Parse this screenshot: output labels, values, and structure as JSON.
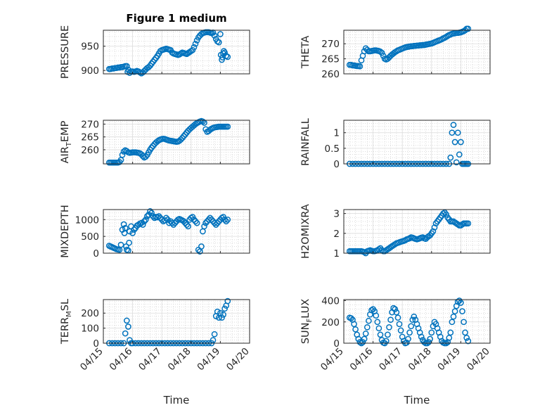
{
  "title": "Figure 1 medium",
  "chart_data": [
    {
      "type": "scatter",
      "ylabel": "PRESSURE",
      "ylabel_parts": [
        "PRESSURE"
      ],
      "yticks": [
        900,
        950
      ],
      "ylim": [
        893,
        983
      ],
      "xlabel": "",
      "xticklabels": [],
      "marker_color": "#0072BD",
      "x": [
        15.2,
        15.25,
        15.3,
        15.35,
        15.4,
        15.45,
        15.5,
        15.55,
        15.6,
        15.65,
        15.7,
        15.75,
        15.8,
        15.83,
        15.86,
        15.9,
        15.95,
        16.0,
        16.05,
        16.1,
        16.15,
        16.2,
        16.25,
        16.3,
        16.35,
        16.4,
        16.45,
        16.5,
        16.55,
        16.6,
        16.65,
        16.7,
        16.75,
        16.8,
        16.85,
        16.9,
        16.95,
        17.0,
        17.05,
        17.1,
        17.15,
        17.2,
        17.25,
        17.3,
        17.35,
        17.4,
        17.45,
        17.5,
        17.55,
        17.6,
        17.65,
        17.7,
        17.75,
        17.8,
        17.85,
        17.9,
        17.95,
        18.0,
        18.05,
        18.1,
        18.15,
        18.2,
        18.25,
        18.3,
        18.35,
        18.4,
        18.45,
        18.5,
        18.55,
        18.6,
        18.65,
        18.7,
        18.75,
        18.8,
        18.85,
        18.9,
        18.95,
        19.0,
        19.02,
        19.05,
        19.08,
        19.1,
        19.12,
        19.15,
        19.2,
        19.25
      ],
      "y": [
        903,
        903,
        904,
        904,
        905,
        905,
        906,
        906,
        907,
        907,
        908,
        909,
        909,
        897,
        901,
        895,
        898,
        898,
        897,
        898,
        899,
        898,
        896,
        894,
        896,
        899,
        902,
        905,
        907,
        910,
        914,
        918,
        922,
        926,
        930,
        935,
        940,
        942,
        943,
        944,
        945,
        944,
        943,
        942,
        937,
        935,
        934,
        933,
        932,
        933,
        935,
        937,
        936,
        935,
        934,
        936,
        938,
        940,
        942,
        948,
        955,
        962,
        968,
        972,
        975,
        977,
        978,
        979,
        979,
        979,
        978,
        977,
        978,
        972,
        965,
        960,
        958,
        975,
        932,
        922,
        927,
        935,
        940,
        937,
        930,
        928
      ]
    },
    {
      "type": "scatter",
      "ylabel": "THETA",
      "ylabel_parts": [
        "THETA"
      ],
      "yticks": [
        260,
        265,
        270
      ],
      "ylim": [
        260,
        274.5
      ],
      "xlabel": "",
      "xticklabels": [],
      "marker_color": "#0072BD",
      "x": [
        15.2,
        15.25,
        15.3,
        15.35,
        15.4,
        15.45,
        15.5,
        15.55,
        15.6,
        15.65,
        15.7,
        15.75,
        15.8,
        15.85,
        15.9,
        15.95,
        16.0,
        16.05,
        16.1,
        16.15,
        16.2,
        16.25,
        16.3,
        16.35,
        16.4,
        16.45,
        16.5,
        16.55,
        16.6,
        16.65,
        16.7,
        16.75,
        16.8,
        16.85,
        16.9,
        16.95,
        17.0,
        17.05,
        17.1,
        17.15,
        17.2,
        17.25,
        17.3,
        17.35,
        17.4,
        17.45,
        17.5,
        17.55,
        17.6,
        17.65,
        17.7,
        17.75,
        17.8,
        17.85,
        17.9,
        17.95,
        18.0,
        18.05,
        18.1,
        18.15,
        18.2,
        18.25,
        18.3,
        18.35,
        18.4,
        18.45,
        18.5,
        18.55,
        18.6,
        18.65,
        18.7,
        18.75,
        18.8,
        18.85,
        18.9,
        18.95,
        19.0,
        19.05,
        19.1,
        19.15,
        19.2,
        19.25
      ],
      "y": [
        263,
        263,
        262.8,
        262.8,
        262.7,
        262.6,
        262.6,
        262.5,
        264.5,
        266,
        267.5,
        268.5,
        268,
        267.5,
        267.5,
        267.6,
        267.7,
        267.8,
        267.8,
        267.7,
        267.6,
        267.4,
        267,
        266,
        265,
        264.8,
        265,
        265.5,
        266,
        266.4,
        266.8,
        267.2,
        267.5,
        267.8,
        268,
        268.2,
        268.4,
        268.6,
        268.8,
        268.9,
        269,
        269.1,
        269.2,
        269.2,
        269.3,
        269.3,
        269.4,
        269.4,
        269.5,
        269.5,
        269.6,
        269.6,
        269.7,
        269.8,
        269.9,
        270,
        270.1,
        270.3,
        270.5,
        270.7,
        270.9,
        271.1,
        271.3,
        271.5,
        271.8,
        272,
        272.3,
        272.6,
        272.9,
        273.1,
        273.3,
        273.4,
        273.5,
        273.6,
        273.6,
        273.7,
        273.8,
        274,
        274.2,
        274.5,
        275,
        275
      ]
    },
    {
      "type": "scatter",
      "ylabel": "AIR_TEMP",
      "ylabel_parts": [
        "AIR",
        "T",
        "EMP"
      ],
      "yticks": [
        260,
        265,
        270
      ],
      "ylim": [
        254.5,
        271.5
      ],
      "xlabel": "",
      "xticklabels": [],
      "marker_color": "#0072BD",
      "x": [
        15.2,
        15.25,
        15.3,
        15.35,
        15.4,
        15.45,
        15.5,
        15.55,
        15.6,
        15.65,
        15.7,
        15.75,
        15.8,
        15.85,
        15.9,
        15.95,
        16.0,
        16.05,
        16.1,
        16.15,
        16.2,
        16.25,
        16.3,
        16.35,
        16.4,
        16.45,
        16.5,
        16.55,
        16.6,
        16.65,
        16.7,
        16.75,
        16.8,
        16.85,
        16.9,
        16.95,
        17.0,
        17.05,
        17.1,
        17.15,
        17.2,
        17.25,
        17.3,
        17.35,
        17.4,
        17.45,
        17.5,
        17.55,
        17.6,
        17.65,
        17.7,
        17.75,
        17.8,
        17.85,
        17.9,
        17.95,
        18.0,
        18.05,
        18.1,
        18.15,
        18.2,
        18.25,
        18.3,
        18.35,
        18.4,
        18.45,
        18.5,
        18.55,
        18.6,
        18.65,
        18.7,
        18.75,
        18.8,
        18.85,
        18.9,
        18.95,
        19.0,
        19.05,
        19.1,
        19.15,
        19.2,
        19.25
      ],
      "y": [
        255,
        255,
        255,
        255,
        255,
        255,
        255,
        255.2,
        256,
        258,
        259.3,
        259.8,
        259.5,
        259,
        258.8,
        258.9,
        259,
        259,
        259,
        258.9,
        258.8,
        258.6,
        258.2,
        257.5,
        257,
        257.3,
        258,
        259,
        260,
        260.8,
        261.5,
        262.2,
        262.8,
        263.3,
        263.7,
        264,
        264.2,
        264.3,
        264.2,
        264,
        263.8,
        263.6,
        263.5,
        263.4,
        263.3,
        263.2,
        263.1,
        263.2,
        263.5,
        264,
        264.6,
        265.3,
        266,
        266.7,
        267.4,
        268,
        268.5,
        269,
        269.5,
        270,
        270.4,
        270.7,
        271,
        271.2,
        271,
        270.5,
        268,
        267,
        267.3,
        267.8,
        268.2,
        268.5,
        268.7,
        268.8,
        268.9,
        269,
        269,
        269,
        269,
        269,
        269,
        269
      ]
    },
    {
      "type": "scatter",
      "ylabel": "RAINFALL",
      "ylabel_parts": [
        "RAINFALL"
      ],
      "yticks": [
        0,
        0.5,
        1
      ],
      "ylim": [
        0,
        1.4
      ],
      "xlabel": "",
      "xticklabels": [],
      "marker_color": "#0072BD",
      "x": [
        15.2,
        15.3,
        15.4,
        15.5,
        15.6,
        15.7,
        15.8,
        15.9,
        16.0,
        16.1,
        16.2,
        16.3,
        16.4,
        16.5,
        16.6,
        16.7,
        16.8,
        16.9,
        17.0,
        17.1,
        17.2,
        17.3,
        17.4,
        17.5,
        17.6,
        17.7,
        17.8,
        17.9,
        18.0,
        18.1,
        18.2,
        18.3,
        18.4,
        18.5,
        18.6,
        18.65,
        18.7,
        18.75,
        18.8,
        18.85,
        18.9,
        18.95,
        19.0,
        19.05,
        19.1,
        19.15,
        19.2,
        19.25
      ],
      "y": [
        0,
        0,
        0,
        0,
        0,
        0,
        0,
        0,
        0,
        0,
        0,
        0,
        0,
        0,
        0,
        0,
        0,
        0,
        0,
        0,
        0,
        0,
        0,
        0,
        0,
        0,
        0,
        0,
        0,
        0,
        0,
        0,
        0,
        0,
        0,
        0.2,
        1.0,
        1.25,
        0.7,
        0.05,
        1.0,
        0.3,
        0.7,
        0,
        0,
        0,
        0,
        0
      ]
    },
    {
      "type": "scatter",
      "ylabel": "MIXDEPTH",
      "ylabel_parts": [
        "MIXDEPTH"
      ],
      "yticks": [
        0,
        500,
        1000
      ],
      "ylim": [
        0,
        1300
      ],
      "xlabel": "",
      "xticklabels": [],
      "marker_color": "#0072BD",
      "x": [
        15.2,
        15.25,
        15.3,
        15.35,
        15.4,
        15.45,
        15.5,
        15.55,
        15.6,
        15.65,
        15.7,
        15.72,
        15.75,
        15.78,
        15.8,
        15.85,
        15.88,
        15.9,
        15.95,
        16.0,
        16.05,
        16.1,
        16.15,
        16.2,
        16.25,
        16.3,
        16.35,
        16.4,
        16.45,
        16.5,
        16.55,
        16.6,
        16.65,
        16.7,
        16.75,
        16.8,
        16.85,
        16.9,
        16.95,
        17.0,
        17.05,
        17.1,
        17.15,
        17.2,
        17.25,
        17.3,
        17.35,
        17.4,
        17.45,
        17.5,
        17.55,
        17.6,
        17.65,
        17.7,
        17.75,
        17.8,
        17.85,
        17.9,
        17.95,
        18.0,
        18.05,
        18.1,
        18.15,
        18.2,
        18.25,
        18.3,
        18.35,
        18.4,
        18.45,
        18.5,
        18.55,
        18.6,
        18.65,
        18.7,
        18.75,
        18.8,
        18.85,
        18.9,
        18.95,
        19.0,
        19.05,
        19.1,
        19.15,
        19.2,
        19.25
      ],
      "y": [
        220,
        200,
        180,
        160,
        140,
        120,
        110,
        100,
        250,
        700,
        860,
        600,
        750,
        200,
        100,
        80,
        310,
        650,
        800,
        600,
        700,
        750,
        820,
        850,
        880,
        900,
        850,
        950,
        1000,
        1100,
        1150,
        1250,
        1200,
        1100,
        1050,
        1080,
        1070,
        1100,
        1050,
        1000,
        950,
        980,
        1050,
        1000,
        900,
        950,
        900,
        850,
        900,
        950,
        1000,
        1020,
        1000,
        980,
        950,
        900,
        850,
        800,
        1000,
        1050,
        1080,
        1000,
        950,
        900,
        100,
        50,
        200,
        650,
        800,
        900,
        950,
        1000,
        1050,
        1000,
        950,
        900,
        850,
        900,
        950,
        1000,
        1050,
        1080,
        1000,
        950,
        1000
      ]
    },
    {
      "type": "scatter",
      "ylabel": "H2OMIXRA",
      "ylabel_parts": [
        "H2OMIXRA"
      ],
      "yticks": [
        1,
        2,
        3
      ],
      "ylim": [
        1,
        3.2
      ],
      "xlabel": "",
      "xticklabels": [],
      "marker_color": "#0072BD",
      "x": [
        15.2,
        15.25,
        15.3,
        15.35,
        15.4,
        15.45,
        15.5,
        15.55,
        15.6,
        15.65,
        15.7,
        15.75,
        15.8,
        15.85,
        15.9,
        15.95,
        16.0,
        16.05,
        16.1,
        16.15,
        16.2,
        16.25,
        16.3,
        16.35,
        16.4,
        16.45,
        16.5,
        16.55,
        16.6,
        16.65,
        16.7,
        16.75,
        16.8,
        16.85,
        16.9,
        16.95,
        17.0,
        17.05,
        17.1,
        17.15,
        17.2,
        17.25,
        17.3,
        17.35,
        17.4,
        17.45,
        17.5,
        17.55,
        17.6,
        17.65,
        17.7,
        17.75,
        17.8,
        17.85,
        17.9,
        17.95,
        18.0,
        18.05,
        18.1,
        18.15,
        18.2,
        18.25,
        18.3,
        18.35,
        18.4,
        18.45,
        18.5,
        18.55,
        18.6,
        18.65,
        18.7,
        18.75,
        18.8,
        18.85,
        18.9,
        18.95,
        19.0,
        19.05,
        19.1,
        19.15,
        19.2,
        19.25
      ],
      "y": [
        1.1,
        1.1,
        1.1,
        1.1,
        1.1,
        1.1,
        1.1,
        1.1,
        1.1,
        1.08,
        1.05,
        1.0,
        1.1,
        1.12,
        1.15,
        1.12,
        1.1,
        1.1,
        1.12,
        1.15,
        1.2,
        1.25,
        1.15,
        1.1,
        1.1,
        1.15,
        1.2,
        1.25,
        1.3,
        1.35,
        1.4,
        1.45,
        1.5,
        1.52,
        1.55,
        1.58,
        1.6,
        1.62,
        1.65,
        1.7,
        1.72,
        1.75,
        1.8,
        1.78,
        1.75,
        1.72,
        1.7,
        1.72,
        1.75,
        1.78,
        1.8,
        1.75,
        1.72,
        1.8,
        1.85,
        1.9,
        2.0,
        2.1,
        2.3,
        2.5,
        2.6,
        2.7,
        2.8,
        2.9,
        3.0,
        3.05,
        2.95,
        2.8,
        2.7,
        2.6,
        2.6,
        2.6,
        2.55,
        2.5,
        2.45,
        2.4,
        2.4,
        2.45,
        2.5,
        2.5,
        2.5,
        2.5
      ]
    },
    {
      "type": "scatter",
      "ylabel": "TERR_MSL",
      "ylabel_parts": [
        "TERR",
        "M",
        "SL"
      ],
      "yticks": [
        0,
        100,
        200
      ],
      "ylim": [
        0,
        290
      ],
      "xlabel": "Time",
      "xticklabels": [
        "04/15",
        "04/16",
        "04/17",
        "04/18",
        "04/19",
        "04/20"
      ],
      "xticks": [
        15,
        16,
        17,
        18,
        19,
        20
      ],
      "marker_color": "#0072BD",
      "x": [
        15.2,
        15.3,
        15.4,
        15.5,
        15.6,
        15.7,
        15.75,
        15.8,
        15.85,
        15.9,
        15.95,
        16.0,
        16.1,
        16.2,
        16.3,
        16.4,
        16.5,
        16.6,
        16.7,
        16.8,
        16.9,
        17.0,
        17.1,
        17.2,
        17.3,
        17.4,
        17.5,
        17.6,
        17.7,
        17.8,
        17.9,
        18.0,
        18.1,
        18.2,
        18.3,
        18.4,
        18.5,
        18.6,
        18.7,
        18.75,
        18.8,
        18.85,
        18.9,
        18.95,
        19.0,
        19.05,
        19.1,
        19.15,
        19.2,
        19.25
      ],
      "y": [
        0,
        0,
        0,
        0,
        0,
        0,
        65,
        150,
        110,
        20,
        0,
        0,
        0,
        0,
        0,
        0,
        0,
        0,
        0,
        0,
        0,
        0,
        0,
        0,
        0,
        0,
        0,
        0,
        0,
        0,
        0,
        0,
        0,
        0,
        0,
        0,
        0,
        0,
        0,
        20,
        60,
        180,
        210,
        170,
        200,
        170,
        190,
        230,
        250,
        280
      ]
    },
    {
      "type": "scatter",
      "ylabel": "SUN_FLUX",
      "ylabel_parts": [
        "SUN",
        "F",
        "LUX"
      ],
      "yticks": [
        0,
        200,
        400
      ],
      "ylim": [
        0,
        410
      ],
      "xlabel": "Time",
      "xticklabels": [
        "04/15",
        "04/16",
        "04/17",
        "04/18",
        "04/19",
        "04/20"
      ],
      "xticks": [
        15,
        16,
        17,
        18,
        19,
        20
      ],
      "marker_color": "#0072BD",
      "x": [
        15.2,
        15.25,
        15.3,
        15.35,
        15.4,
        15.45,
        15.5,
        15.55,
        15.6,
        15.65,
        15.7,
        15.75,
        15.8,
        15.85,
        15.9,
        15.95,
        16.0,
        16.05,
        16.1,
        16.15,
        16.2,
        16.25,
        16.3,
        16.35,
        16.4,
        16.45,
        16.5,
        16.55,
        16.6,
        16.65,
        16.7,
        16.75,
        16.8,
        16.85,
        16.9,
        16.95,
        17.0,
        17.05,
        17.1,
        17.15,
        17.2,
        17.25,
        17.3,
        17.35,
        17.4,
        17.45,
        17.5,
        17.55,
        17.6,
        17.65,
        17.7,
        17.75,
        17.8,
        17.85,
        17.9,
        17.95,
        18.0,
        18.05,
        18.1,
        18.15,
        18.2,
        18.25,
        18.3,
        18.35,
        18.4,
        18.45,
        18.5,
        18.55,
        18.6,
        18.65,
        18.7,
        18.75,
        18.8,
        18.85,
        18.9,
        18.95,
        19.0,
        19.05,
        19.1,
        19.15,
        19.2,
        19.25
      ],
      "y": [
        240,
        235,
        220,
        180,
        130,
        80,
        40,
        10,
        0,
        10,
        40,
        90,
        150,
        210,
        270,
        310,
        320,
        300,
        260,
        200,
        140,
        80,
        30,
        5,
        0,
        20,
        80,
        150,
        220,
        290,
        330,
        320,
        290,
        240,
        180,
        120,
        60,
        20,
        0,
        5,
        40,
        100,
        160,
        220,
        250,
        220,
        180,
        140,
        100,
        60,
        30,
        10,
        0,
        0,
        10,
        40,
        100,
        160,
        200,
        180,
        140,
        100,
        60,
        20,
        5,
        0,
        0,
        10,
        50,
        100,
        200,
        250,
        300,
        350,
        390,
        400,
        380,
        300,
        200,
        100,
        50,
        20
      ]
    }
  ]
}
